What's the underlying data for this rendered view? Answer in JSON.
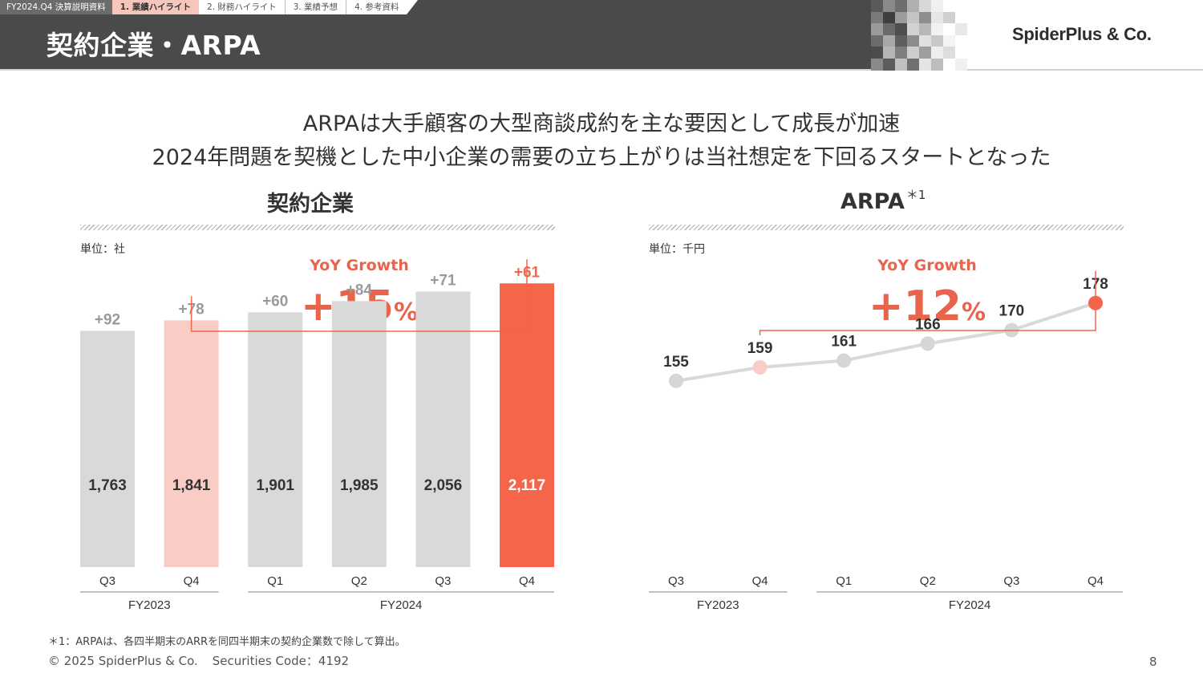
{
  "header": {
    "doc_label": "FY2024.Q4 決算説明資料",
    "tabs": [
      {
        "label": "1. 業績ハイライト",
        "active": true
      },
      {
        "label": "2. 財務ハイライト",
        "active": false
      },
      {
        "label": "3. 業績予想",
        "active": false
      },
      {
        "label": "4. 参考資料",
        "active": false
      }
    ],
    "title": "契約企業・ARPA",
    "logo": "SpiderPlus & Co.",
    "band_color": "#4a4a4a"
  },
  "headline": {
    "line1": "ARPAは大手顧客の大型商談成約を主な要因として成長が加速",
    "line2": "2024年問題を契機とした中小企業の需要の立ち上がりは当社想定を下回るスタートとなった"
  },
  "colors": {
    "accent": "#f4654a",
    "accent_text": "#e8644d",
    "light_accent": "#f9cdc5",
    "neutral": "#d9d9d9"
  },
  "chart_data": [
    {
      "type": "bar",
      "title": "契約企業",
      "unit": "単位：社",
      "yoy_label": "YoY Growth",
      "yoy_value": "+15",
      "yoy_suffix": "%",
      "categories": [
        "Q3",
        "Q4",
        "Q1",
        "Q2",
        "Q3",
        "Q4"
      ],
      "groups": [
        {
          "label": "FY2023",
          "from": 0,
          "to": 1
        },
        {
          "label": "FY2024",
          "from": 2,
          "to": 5
        }
      ],
      "values": [
        1763,
        1841,
        1901,
        1985,
        2056,
        2117
      ],
      "value_labels": [
        "1,763",
        "1,841",
        "1,901",
        "1,985",
        "2,056",
        "2,117"
      ],
      "increments": [
        "+92",
        "+78",
        "+60",
        "+84",
        "+71",
        "+61"
      ],
      "highlight": {
        "compare_from": 1,
        "compare_to": 5
      },
      "ylim": [
        0,
        2400
      ]
    },
    {
      "type": "line",
      "title": "ARPA",
      "title_note": "＊1",
      "unit": "単位：千円",
      "yoy_label": "YoY Growth",
      "yoy_value": "+12",
      "yoy_suffix": "%",
      "categories": [
        "Q3",
        "Q4",
        "Q1",
        "Q2",
        "Q3",
        "Q4"
      ],
      "groups": [
        {
          "label": "FY2023",
          "from": 0,
          "to": 1
        },
        {
          "label": "FY2024",
          "from": 2,
          "to": 5
        }
      ],
      "values": [
        155,
        159,
        161,
        166,
        170,
        178
      ],
      "value_labels": [
        "155",
        "159",
        "161",
        "166",
        "170",
        "178"
      ],
      "highlight": {
        "compare_from": 1,
        "compare_to": 5
      },
      "ylim": [
        100,
        195
      ]
    }
  ],
  "footnote": "＊1：ARPAは、各四半期末のARRを同四半期末の契約企業数で除して算出。",
  "footer": {
    "copyright": "© 2025 SpiderPlus & Co.",
    "securities": "Securities Code：4192",
    "page": "8"
  }
}
